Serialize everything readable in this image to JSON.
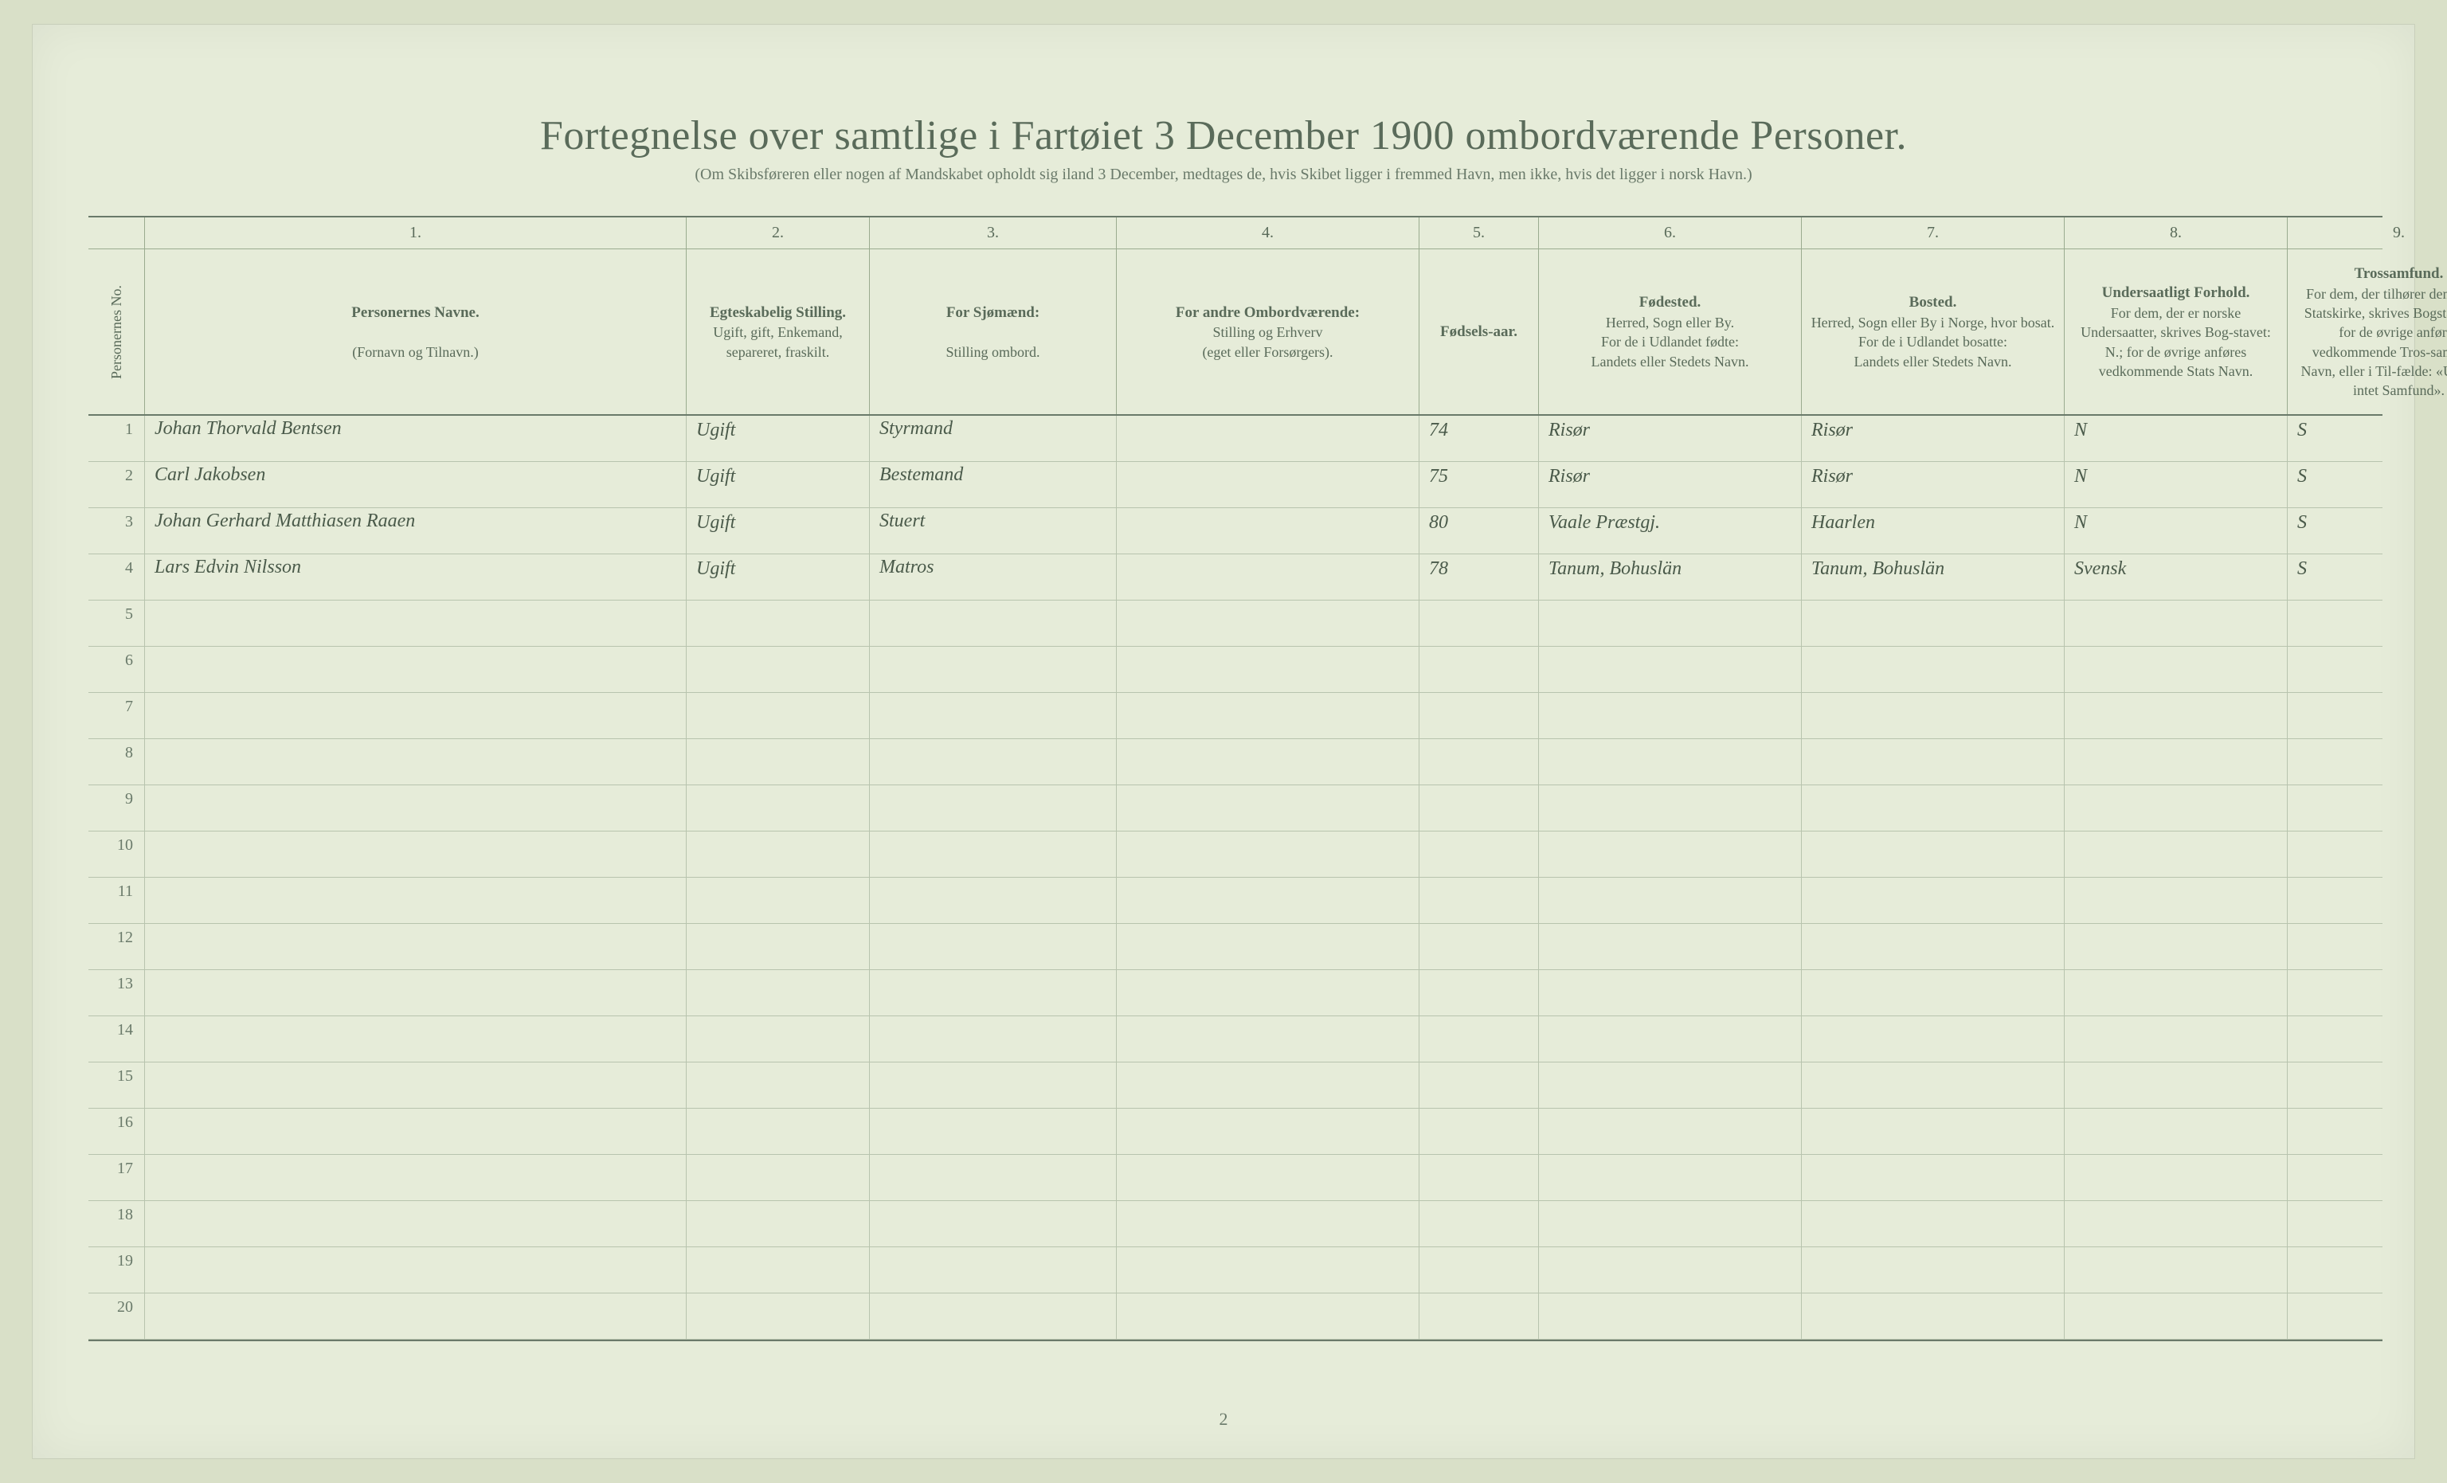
{
  "document": {
    "title": "Fortegnelse over samtlige i Fartøiet 3 December 1900 ombordværende Personer.",
    "subtitle": "(Om Skibsføreren eller nogen af Mandskabet opholdt sig iland 3 December, medtages de, hvis Skibet ligger i fremmed Havn, men ikke, hvis det ligger i norsk Havn.)",
    "page_number": "2",
    "background_color": "#e6ecd9",
    "line_color": "#9aab8f",
    "text_color": "#5a6b5a",
    "handwriting_color": "#3b4a3b"
  },
  "columns": {
    "nums": [
      "",
      "1.",
      "2.",
      "3.",
      "4.",
      "5.",
      "6.",
      "7.",
      "8.",
      "9."
    ],
    "c0": "Personernes No.",
    "c1_a": "Personernes Navne.",
    "c1_b": "(Fornavn og Tilnavn.)",
    "c2_a": "Egteskabelig Stilling.",
    "c2_b": "Ugift, gift, Enkemand, separeret, fraskilt.",
    "c3_a": "For Sjømænd:",
    "c3_b": "Stilling ombord.",
    "c4_a": "For andre Ombordværende:",
    "c4_b": "Stilling og Erhverv",
    "c4_c": "(eget eller Forsørgers).",
    "c5": "Fødsels-aar.",
    "c6_a": "Fødested.",
    "c6_b": "Herred, Sogn eller By.",
    "c6_c": "For de i Udlandet fødte:",
    "c6_d": "Landets eller Stedets Navn.",
    "c7_a": "Bosted.",
    "c7_b": "Herred, Sogn eller By i Norge, hvor bosat.",
    "c7_c": "For de i Udlandet bosatte:",
    "c7_d": "Landets eller Stedets Navn.",
    "c8_a": "Undersaatligt Forhold.",
    "c8_b": "For dem, der er norske Undersaatter, skrives Bog-stavet: N.; for de øvrige anføres vedkommende Stats Navn.",
    "c9_a": "Trossamfund.",
    "c9_b": "For dem, der tilhører den norske Statskirke, skrives Bogstavet: S.; for de øvrige anføres vedkommende Tros-samfunds Navn, eller i Til-fælde: «Udtraadt, intet Samfund»."
  },
  "rows": [
    {
      "n": "1",
      "name": "Johan Thorvald Bentsen",
      "marital": "Ugift",
      "position": "Styrmand",
      "other": "",
      "year": "74",
      "birthplace": "Risør",
      "residence": "Risør",
      "nationality": "N",
      "religion": "S"
    },
    {
      "n": "2",
      "name": "Carl Jakobsen",
      "marital": "Ugift",
      "position": "Bestemand",
      "other": "",
      "year": "75",
      "birthplace": "Risør",
      "residence": "Risør",
      "nationality": "N",
      "religion": "S"
    },
    {
      "n": "3",
      "name": "Johan Gerhard Matthiasen Raaen",
      "marital": "Ugift",
      "position": "Stuert",
      "other": "",
      "year": "80",
      "birthplace": "Vaale Præstgj.",
      "residence": "Haarlen",
      "nationality": "N",
      "religion": "S"
    },
    {
      "n": "4",
      "name": "Lars Edvin Nilsson",
      "marital": "Ugift",
      "position": "Matros",
      "other": "",
      "year": "78",
      "birthplace": "Tanum, Bohuslän",
      "residence": "Tanum, Bohuslän",
      "nationality": "Svensk",
      "religion": "S"
    },
    {
      "n": "5"
    },
    {
      "n": "6"
    },
    {
      "n": "7"
    },
    {
      "n": "8"
    },
    {
      "n": "9"
    },
    {
      "n": "10"
    },
    {
      "n": "11"
    },
    {
      "n": "12"
    },
    {
      "n": "13"
    },
    {
      "n": "14"
    },
    {
      "n": "15"
    },
    {
      "n": "16"
    },
    {
      "n": "17"
    },
    {
      "n": "18"
    },
    {
      "n": "19"
    },
    {
      "n": "20"
    }
  ]
}
